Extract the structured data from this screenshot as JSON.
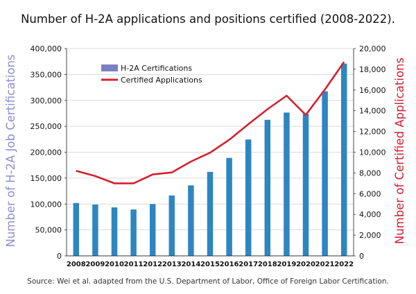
{
  "title": "Number of H-2A applications and positions certified (2008-2022).",
  "source": "Source: Wei et al. adapted from the U.S. Department of Labor, Office of Foreign Labor Certification.",
  "chart_data": {
    "type": "bar",
    "categories": [
      "2008",
      "2009",
      "2010",
      "2011",
      "2012",
      "2013",
      "2014",
      "2015",
      "2016",
      "2017",
      "2018",
      "2019",
      "2020",
      "2021",
      "2022"
    ],
    "series": [
      {
        "name": "H-2A Certifications",
        "type": "bar",
        "axis": "left",
        "color": "#2e86c1",
        "values": [
          102000,
          99000,
          93500,
          89500,
          100000,
          116500,
          136000,
          162000,
          189000,
          224500,
          262500,
          276500,
          274000,
          317500,
          371000
        ]
      },
      {
        "name": "Certified Applications",
        "type": "line",
        "axis": "right",
        "color": "#d3202e",
        "values": [
          8200,
          7700,
          7000,
          7000,
          7850,
          8050,
          9100,
          9950,
          11200,
          12700,
          14150,
          15450,
          13600,
          16050,
          18700
        ]
      }
    ],
    "ylabel_left": "Number of H-2A Job Certifications",
    "ylabel_right": "Number of Certified Applications",
    "ylim_left": [
      0,
      400000
    ],
    "ylim_right": [
      0,
      20000
    ],
    "yticks_left": [
      "0",
      "50,000",
      "100,000",
      "150,000",
      "200,000",
      "250,000",
      "300,000",
      "350,000",
      "400,000"
    ],
    "yticks_right": [
      "0",
      "2,000",
      "4,000",
      "6,000",
      "8,000",
      "10,000",
      "12,000",
      "14,000",
      "16,000",
      "18,000",
      "20,000"
    ],
    "grid": "horizontal",
    "legend": "top-left",
    "axis_label_colors": {
      "left": "#8b8fd1",
      "right": "#d3202e"
    },
    "legend_bar_color": "#7b7fc4"
  }
}
